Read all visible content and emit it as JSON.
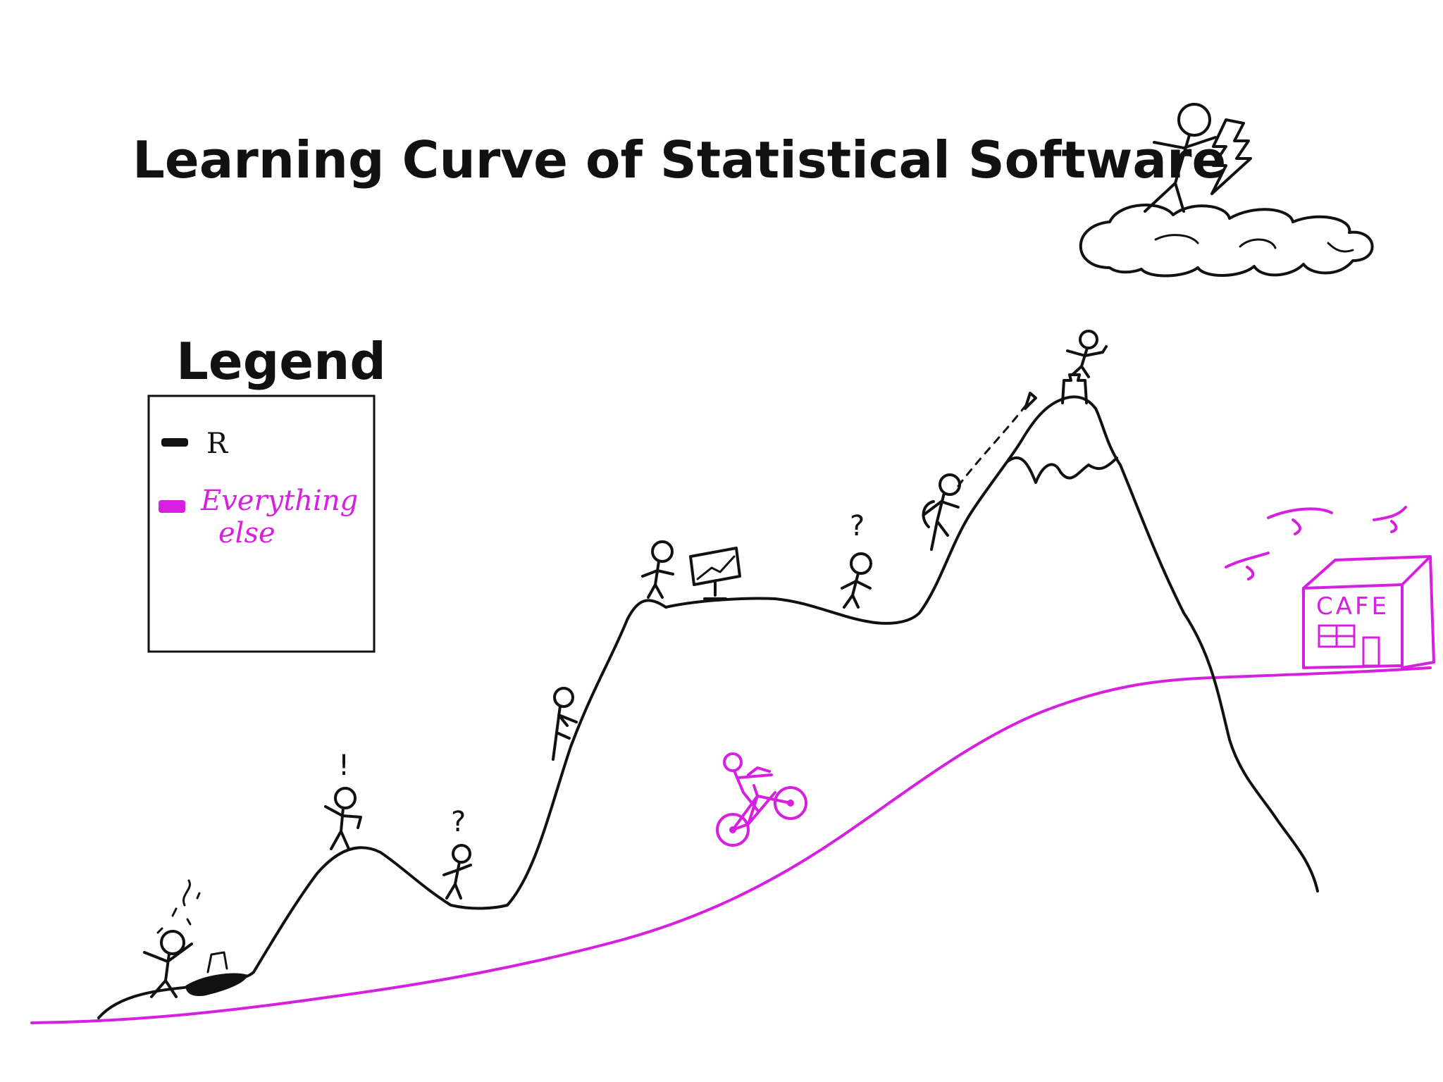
{
  "title": "Learning Curve of Statistical Software",
  "legend": {
    "title": "Legend",
    "items": [
      {
        "label_lines": [
          "R"
        ],
        "color": "#111111"
      },
      {
        "label_lines": [
          "Everything",
          "else"
        ],
        "color": "#d61fe0"
      }
    ]
  },
  "cafe": {
    "sign": "CAFE"
  },
  "annotations": {
    "exclaim": "!",
    "question_1": "?",
    "question_2": "?"
  },
  "colors": {
    "r_curve": "#111111",
    "everything_else_curve": "#d61fe0"
  }
}
